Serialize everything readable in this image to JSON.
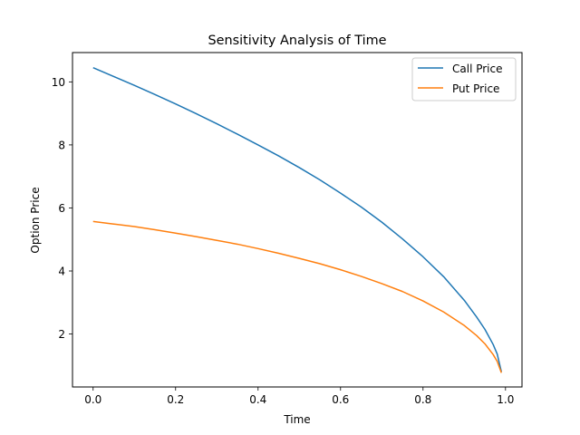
{
  "chart_data": {
    "type": "line",
    "title": "Sensitivity Analysis of Time",
    "xlabel": "Time",
    "ylabel": "Option Price",
    "xlim": [
      -0.05,
      1.04
    ],
    "ylim": [
      0.32,
      10.93
    ],
    "xticks": [
      0.0,
      0.2,
      0.4,
      0.6,
      0.8,
      1.0
    ],
    "xtick_labels": [
      "0.0",
      "0.2",
      "0.4",
      "0.6",
      "0.8",
      "1.0"
    ],
    "yticks": [
      2,
      4,
      6,
      8,
      10
    ],
    "ytick_labels": [
      "2",
      "4",
      "6",
      "8",
      "10"
    ],
    "grid": false,
    "legend_position": "top-right",
    "series": [
      {
        "name": "Call Price",
        "color": "#1f77b4",
        "x": [
          0.0,
          0.05,
          0.1,
          0.15,
          0.2,
          0.25,
          0.3,
          0.35,
          0.4,
          0.45,
          0.5,
          0.55,
          0.6,
          0.65,
          0.7,
          0.75,
          0.8,
          0.85,
          0.9,
          0.93,
          0.95,
          0.97,
          0.98,
          0.99
        ],
        "y": [
          10.45,
          10.17,
          9.89,
          9.6,
          9.3,
          8.99,
          8.67,
          8.34,
          8.0,
          7.65,
          7.28,
          6.89,
          6.47,
          6.03,
          5.55,
          5.02,
          4.45,
          3.82,
          3.07,
          2.54,
          2.15,
          1.67,
          1.36,
          0.8
        ]
      },
      {
        "name": "Put Price",
        "color": "#ff7f0e",
        "x": [
          0.0,
          0.05,
          0.1,
          0.15,
          0.2,
          0.25,
          0.3,
          0.35,
          0.4,
          0.45,
          0.5,
          0.55,
          0.6,
          0.65,
          0.7,
          0.75,
          0.8,
          0.85,
          0.9,
          0.93,
          0.95,
          0.97,
          0.98,
          0.99
        ],
        "y": [
          5.57,
          5.49,
          5.41,
          5.31,
          5.2,
          5.09,
          4.97,
          4.85,
          4.71,
          4.56,
          4.4,
          4.23,
          4.04,
          3.83,
          3.6,
          3.35,
          3.05,
          2.7,
          2.27,
          1.95,
          1.69,
          1.35,
          1.13,
          0.77
        ]
      }
    ]
  }
}
